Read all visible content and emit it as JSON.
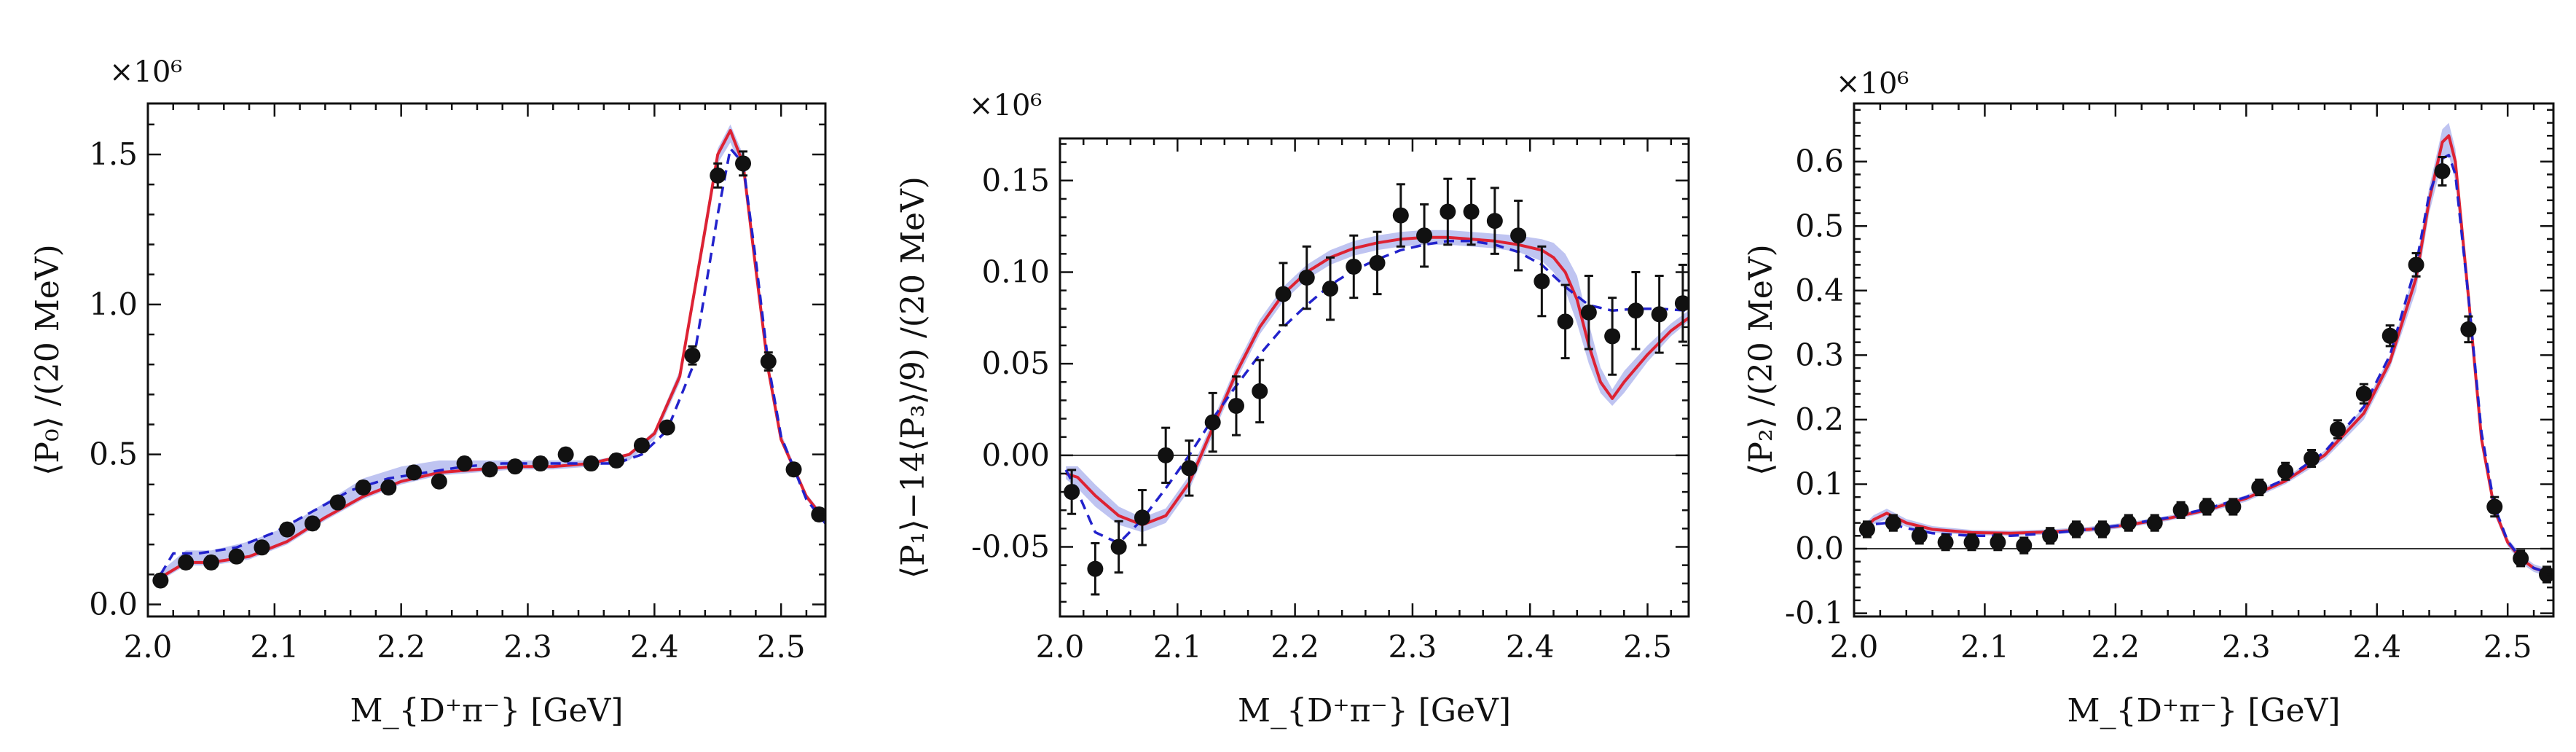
{
  "colors": {
    "model_solid": "#dd2233",
    "model_dashed": "#2222cc",
    "band": "#aab0ec",
    "data_points": "#111111",
    "zero_line": "#333333"
  },
  "chart_data": [
    {
      "type": "scatter",
      "title": "",
      "multiplier_label": "×10⁶",
      "xlabel": "M_{D⁺π⁻} [GeV]",
      "ylabel": "⟨P₀⟩ /(20 MeV)",
      "xlim": [
        2.0,
        2.535
      ],
      "ylim": [
        -0.04,
        1.67
      ],
      "xticks": [
        2.0,
        2.1,
        2.2,
        2.3,
        2.4,
        2.5
      ],
      "xtick_labels": [
        "2.0",
        "2.1",
        "2.2",
        "2.3",
        "2.4",
        "2.5"
      ],
      "yticks": [
        0.0,
        0.5,
        1.0,
        1.5
      ],
      "ytick_labels": [
        "0.0",
        "0.5",
        "1.0",
        "1.5"
      ],
      "zero_line": false,
      "series": [
        {
          "name": "data",
          "style": "points-with-errorbars",
          "x": [
            2.01,
            2.03,
            2.05,
            2.07,
            2.09,
            2.11,
            2.13,
            2.15,
            2.17,
            2.19,
            2.21,
            2.23,
            2.25,
            2.27,
            2.29,
            2.31,
            2.33,
            2.35,
            2.37,
            2.39,
            2.41,
            2.43,
            2.45,
            2.47,
            2.49,
            2.51,
            2.53
          ],
          "y": [
            0.08,
            0.14,
            0.14,
            0.16,
            0.19,
            0.25,
            0.27,
            0.34,
            0.39,
            0.39,
            0.44,
            0.41,
            0.47,
            0.45,
            0.46,
            0.47,
            0.5,
            0.47,
            0.48,
            0.53,
            0.59,
            0.83,
            1.43,
            1.47,
            0.81,
            0.45,
            0.3
          ],
          "err": [
            0.02,
            0.02,
            0.02,
            0.02,
            0.02,
            0.02,
            0.02,
            0.02,
            0.02,
            0.02,
            0.02,
            0.02,
            0.02,
            0.02,
            0.02,
            0.02,
            0.02,
            0.02,
            0.02,
            0.02,
            0.02,
            0.03,
            0.04,
            0.04,
            0.03,
            0.02,
            0.02
          ]
        },
        {
          "name": "model (solid)",
          "style": "solid",
          "x": [
            2.01,
            2.03,
            2.05,
            2.08,
            2.11,
            2.14,
            2.17,
            2.2,
            2.23,
            2.26,
            2.29,
            2.32,
            2.35,
            2.38,
            2.4,
            2.42,
            2.44,
            2.45,
            2.46,
            2.47,
            2.48,
            2.49,
            2.5,
            2.52,
            2.535
          ],
          "y": [
            0.09,
            0.14,
            0.14,
            0.16,
            0.21,
            0.29,
            0.36,
            0.41,
            0.44,
            0.45,
            0.46,
            0.46,
            0.47,
            0.5,
            0.57,
            0.76,
            1.25,
            1.5,
            1.58,
            1.47,
            1.12,
            0.78,
            0.55,
            0.36,
            0.28
          ]
        },
        {
          "name": "model (dashed)",
          "style": "dashed",
          "x": [
            2.01,
            2.02,
            2.04,
            2.07,
            2.1,
            2.13,
            2.16,
            2.19,
            2.22,
            2.25,
            2.28,
            2.31,
            2.34,
            2.37,
            2.39,
            2.41,
            2.43,
            2.45,
            2.46,
            2.47,
            2.48,
            2.49,
            2.5,
            2.52,
            2.535
          ],
          "y": [
            0.1,
            0.17,
            0.17,
            0.19,
            0.24,
            0.31,
            0.38,
            0.42,
            0.44,
            0.46,
            0.47,
            0.47,
            0.47,
            0.47,
            0.5,
            0.58,
            0.79,
            1.3,
            1.52,
            1.47,
            1.15,
            0.8,
            0.56,
            0.35,
            0.27
          ]
        },
        {
          "name": "uncertainty band",
          "style": "band",
          "x": [
            2.01,
            2.03,
            2.05,
            2.08,
            2.11,
            2.14,
            2.17,
            2.2,
            2.23,
            2.26,
            2.29,
            2.32,
            2.35,
            2.38,
            2.4,
            2.42,
            2.44,
            2.45,
            2.46,
            2.47,
            2.48,
            2.49,
            2.5,
            2.52,
            2.535
          ],
          "lower": [
            0.08,
            0.13,
            0.13,
            0.15,
            0.2,
            0.28,
            0.35,
            0.4,
            0.43,
            0.44,
            0.45,
            0.45,
            0.46,
            0.48,
            0.55,
            0.74,
            1.22,
            1.47,
            1.54,
            1.44,
            1.1,
            0.76,
            0.54,
            0.35,
            0.27
          ],
          "upper": [
            0.11,
            0.18,
            0.18,
            0.21,
            0.26,
            0.34,
            0.42,
            0.46,
            0.48,
            0.48,
            0.48,
            0.48,
            0.48,
            0.5,
            0.58,
            0.78,
            1.28,
            1.52,
            1.6,
            1.5,
            1.15,
            0.8,
            0.57,
            0.37,
            0.29
          ]
        }
      ]
    },
    {
      "type": "scatter",
      "title": "",
      "multiplier_label": "×10⁶",
      "xlabel": "M_{D⁺π⁻} [GeV]",
      "ylabel": "⟨P₁⟩−14⟨P₃⟩/9) /(20 MeV)",
      "xlim": [
        2.0,
        2.535
      ],
      "ylim": [
        -0.088,
        0.173
      ],
      "xticks": [
        2.0,
        2.1,
        2.2,
        2.3,
        2.4,
        2.5
      ],
      "xtick_labels": [
        "2.0",
        "2.1",
        "2.2",
        "2.3",
        "2.4",
        "2.5"
      ],
      "yticks": [
        -0.05,
        0.0,
        0.05,
        0.1,
        0.15
      ],
      "ytick_labels": [
        "-0.05",
        "0.00",
        "0.05",
        "0.10",
        "0.15"
      ],
      "zero_line": true,
      "series": [
        {
          "name": "data",
          "style": "points-with-errorbars",
          "x": [
            2.01,
            2.03,
            2.05,
            2.07,
            2.09,
            2.11,
            2.13,
            2.15,
            2.17,
            2.19,
            2.21,
            2.23,
            2.25,
            2.27,
            2.29,
            2.31,
            2.33,
            2.35,
            2.37,
            2.39,
            2.41,
            2.43,
            2.45,
            2.47,
            2.49,
            2.51,
            2.53
          ],
          "y": [
            -0.02,
            -0.062,
            -0.05,
            -0.034,
            0.0,
            -0.007,
            0.018,
            0.027,
            0.035,
            0.088,
            0.097,
            0.091,
            0.103,
            0.105,
            0.131,
            0.12,
            0.133,
            0.133,
            0.128,
            0.12,
            0.095,
            0.073,
            0.078,
            0.065,
            0.079,
            0.077,
            0.083
          ],
          "err": [
            0.012,
            0.014,
            0.014,
            0.015,
            0.015,
            0.015,
            0.016,
            0.016,
            0.017,
            0.017,
            0.017,
            0.017,
            0.017,
            0.017,
            0.017,
            0.017,
            0.018,
            0.018,
            0.018,
            0.019,
            0.019,
            0.02,
            0.02,
            0.021,
            0.021,
            0.021,
            0.021
          ]
        },
        {
          "name": "model (solid)",
          "style": "solid",
          "x": [
            2.005,
            2.015,
            2.03,
            2.05,
            2.07,
            2.09,
            2.11,
            2.13,
            2.15,
            2.17,
            2.19,
            2.21,
            2.23,
            2.25,
            2.27,
            2.29,
            2.31,
            2.33,
            2.35,
            2.37,
            2.39,
            2.41,
            2.42,
            2.43,
            2.44,
            2.45,
            2.46,
            2.47,
            2.48,
            2.5,
            2.52,
            2.535
          ],
          "y": [
            -0.01,
            -0.012,
            -0.022,
            -0.033,
            -0.038,
            -0.033,
            -0.015,
            0.015,
            0.045,
            0.07,
            0.088,
            0.1,
            0.108,
            0.113,
            0.116,
            0.118,
            0.119,
            0.119,
            0.118,
            0.117,
            0.115,
            0.112,
            0.108,
            0.1,
            0.085,
            0.06,
            0.04,
            0.031,
            0.04,
            0.055,
            0.068,
            0.075
          ]
        },
        {
          "name": "model (dashed)",
          "style": "dashed",
          "x": [
            2.005,
            2.015,
            2.03,
            2.05,
            2.07,
            2.09,
            2.11,
            2.13,
            2.15,
            2.17,
            2.19,
            2.21,
            2.23,
            2.25,
            2.27,
            2.29,
            2.31,
            2.33,
            2.35,
            2.37,
            2.39,
            2.41,
            2.43,
            2.45,
            2.47,
            2.49,
            2.51,
            2.535
          ],
          "y": [
            -0.008,
            -0.02,
            -0.042,
            -0.048,
            -0.035,
            -0.018,
            0.0,
            0.02,
            0.038,
            0.055,
            0.07,
            0.082,
            0.093,
            0.101,
            0.107,
            0.112,
            0.115,
            0.117,
            0.117,
            0.115,
            0.111,
            0.104,
            0.092,
            0.082,
            0.079,
            0.08,
            0.08,
            0.079
          ]
        },
        {
          "name": "uncertainty band",
          "style": "band",
          "x": [
            2.005,
            2.015,
            2.03,
            2.05,
            2.07,
            2.09,
            2.11,
            2.13,
            2.15,
            2.17,
            2.19,
            2.21,
            2.23,
            2.25,
            2.27,
            2.29,
            2.31,
            2.33,
            2.35,
            2.37,
            2.39,
            2.41,
            2.42,
            2.43,
            2.44,
            2.45,
            2.46,
            2.47,
            2.48,
            2.5,
            2.52,
            2.535
          ],
          "lower": [
            -0.013,
            -0.018,
            -0.028,
            -0.038,
            -0.042,
            -0.037,
            -0.019,
            0.011,
            0.041,
            0.066,
            0.084,
            0.096,
            0.104,
            0.109,
            0.112,
            0.114,
            0.115,
            0.115,
            0.114,
            0.113,
            0.111,
            0.106,
            0.1,
            0.09,
            0.072,
            0.05,
            0.034,
            0.027,
            0.034,
            0.051,
            0.065,
            0.073
          ],
          "upper": [
            -0.006,
            -0.006,
            -0.016,
            -0.028,
            -0.034,
            -0.029,
            -0.011,
            0.019,
            0.049,
            0.074,
            0.092,
            0.104,
            0.112,
            0.117,
            0.12,
            0.122,
            0.123,
            0.123,
            0.122,
            0.121,
            0.12,
            0.118,
            0.116,
            0.11,
            0.098,
            0.072,
            0.048,
            0.036,
            0.046,
            0.06,
            0.072,
            0.079
          ]
        }
      ]
    },
    {
      "type": "scatter",
      "title": "",
      "multiplier_label": "×10⁶",
      "xlabel": "M_{D⁺π⁻} [GeV]",
      "ylabel": "⟨P₂⟩ /(20 MeV)",
      "xlim": [
        2.0,
        2.535
      ],
      "ylim": [
        -0.105,
        0.69
      ],
      "xticks": [
        2.0,
        2.1,
        2.2,
        2.3,
        2.4,
        2.5
      ],
      "xtick_labels": [
        "2.0",
        "2.1",
        "2.2",
        "2.3",
        "2.4",
        "2.5"
      ],
      "yticks": [
        -0.1,
        0.0,
        0.1,
        0.2,
        0.3,
        0.4,
        0.5,
        0.6
      ],
      "ytick_labels": [
        "-0.1",
        "0.0",
        "0.1",
        "0.2",
        "0.3",
        "0.4",
        "0.5",
        "0.6"
      ],
      "zero_line": true,
      "series": [
        {
          "name": "data",
          "style": "points-with-errorbars",
          "x": [
            2.01,
            2.03,
            2.05,
            2.07,
            2.09,
            2.11,
            2.13,
            2.15,
            2.17,
            2.19,
            2.21,
            2.23,
            2.25,
            2.27,
            2.29,
            2.31,
            2.33,
            2.35,
            2.37,
            2.39,
            2.41,
            2.43,
            2.45,
            2.47,
            2.49,
            2.51,
            2.53
          ],
          "y": [
            0.03,
            0.04,
            0.02,
            0.01,
            0.01,
            0.01,
            0.005,
            0.02,
            0.03,
            0.03,
            0.04,
            0.04,
            0.06,
            0.065,
            0.065,
            0.095,
            0.12,
            0.14,
            0.185,
            0.24,
            0.33,
            0.44,
            0.585,
            0.34,
            0.065,
            -0.015,
            -0.04
          ],
          "err": [
            0.012,
            0.012,
            0.012,
            0.012,
            0.012,
            0.012,
            0.012,
            0.012,
            0.012,
            0.012,
            0.012,
            0.012,
            0.012,
            0.012,
            0.012,
            0.012,
            0.013,
            0.013,
            0.014,
            0.015,
            0.016,
            0.018,
            0.022,
            0.02,
            0.015,
            0.012,
            0.012
          ]
        },
        {
          "name": "model (solid)",
          "style": "solid",
          "x": [
            2.005,
            2.015,
            2.025,
            2.04,
            2.06,
            2.09,
            2.12,
            2.15,
            2.18,
            2.21,
            2.24,
            2.27,
            2.3,
            2.33,
            2.36,
            2.39,
            2.41,
            2.43,
            2.44,
            2.45,
            2.455,
            2.46,
            2.47,
            2.48,
            2.49,
            2.5,
            2.51,
            2.52,
            2.535
          ],
          "y": [
            0.025,
            0.045,
            0.055,
            0.04,
            0.03,
            0.025,
            0.024,
            0.026,
            0.03,
            0.037,
            0.047,
            0.06,
            0.078,
            0.105,
            0.145,
            0.21,
            0.29,
            0.42,
            0.54,
            0.63,
            0.64,
            0.6,
            0.39,
            0.17,
            0.06,
            0.01,
            -0.015,
            -0.03,
            -0.04
          ]
        },
        {
          "name": "model (dashed)",
          "style": "dashed",
          "x": [
            2.005,
            2.015,
            2.025,
            2.04,
            2.06,
            2.09,
            2.12,
            2.15,
            2.18,
            2.21,
            2.24,
            2.27,
            2.3,
            2.33,
            2.36,
            2.39,
            2.41,
            2.43,
            2.44,
            2.45,
            2.455,
            2.46,
            2.47,
            2.48,
            2.49,
            2.5,
            2.51,
            2.52,
            2.535
          ],
          "y": [
            0.028,
            0.038,
            0.04,
            0.032,
            0.024,
            0.02,
            0.02,
            0.024,
            0.03,
            0.038,
            0.048,
            0.062,
            0.08,
            0.108,
            0.15,
            0.22,
            0.3,
            0.44,
            0.55,
            0.605,
            0.61,
            0.58,
            0.39,
            0.18,
            0.065,
            0.012,
            -0.015,
            -0.03,
            -0.04
          ]
        },
        {
          "name": "uncertainty band",
          "style": "band",
          "x": [
            2.005,
            2.015,
            2.025,
            2.04,
            2.06,
            2.09,
            2.12,
            2.15,
            2.18,
            2.21,
            2.24,
            2.27,
            2.3,
            2.33,
            2.36,
            2.39,
            2.41,
            2.43,
            2.44,
            2.45,
            2.455,
            2.46,
            2.47,
            2.48,
            2.49,
            2.5,
            2.51,
            2.52,
            2.535
          ],
          "lower": [
            0.02,
            0.038,
            0.046,
            0.034,
            0.025,
            0.021,
            0.02,
            0.022,
            0.026,
            0.033,
            0.043,
            0.056,
            0.073,
            0.1,
            0.138,
            0.2,
            0.28,
            0.4,
            0.52,
            0.6,
            0.61,
            0.57,
            0.37,
            0.16,
            0.052,
            0.004,
            -0.022,
            -0.036,
            -0.046
          ],
          "upper": [
            0.032,
            0.052,
            0.062,
            0.046,
            0.035,
            0.029,
            0.028,
            0.03,
            0.034,
            0.041,
            0.051,
            0.064,
            0.083,
            0.11,
            0.152,
            0.22,
            0.3,
            0.44,
            0.56,
            0.65,
            0.66,
            0.62,
            0.41,
            0.18,
            0.068,
            0.016,
            -0.008,
            -0.024,
            -0.034
          ]
        }
      ]
    }
  ]
}
